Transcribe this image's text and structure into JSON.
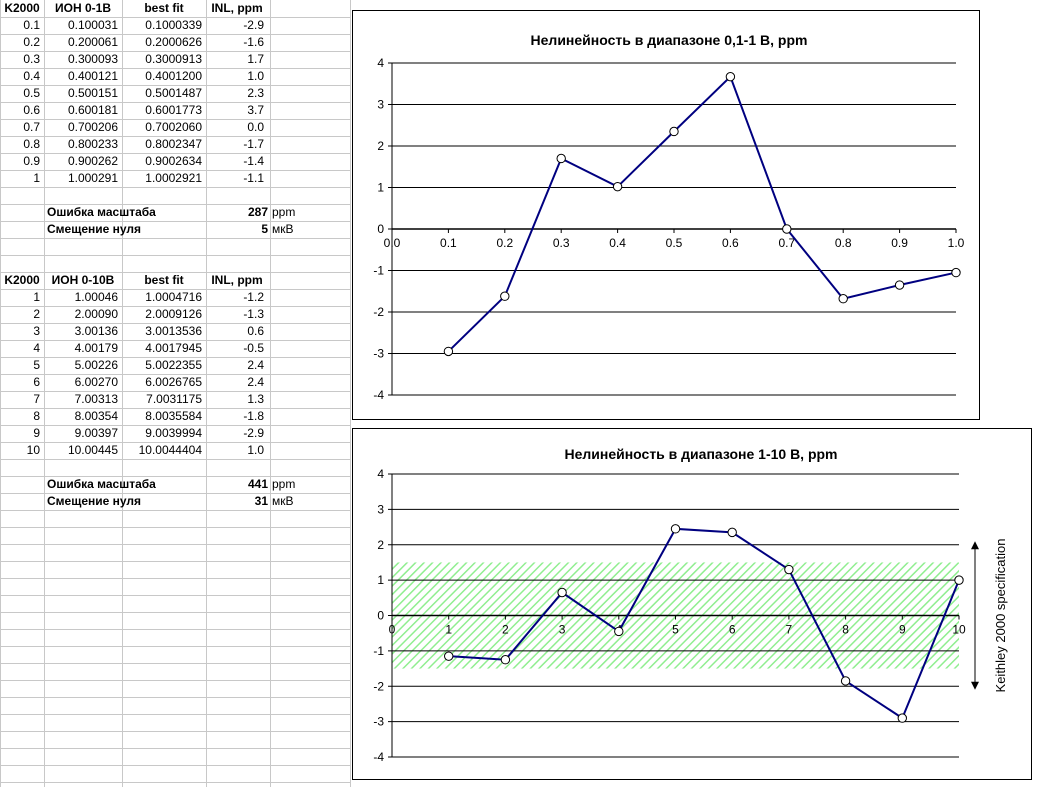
{
  "table1": {
    "headers": [
      "K2000",
      "ИОН 0-1В",
      "best fit",
      "INL, ppm"
    ],
    "rows": [
      [
        "0.1",
        "0.100031",
        "0.1000339",
        "-2.9"
      ],
      [
        "0.2",
        "0.200061",
        "0.2000626",
        "-1.6"
      ],
      [
        "0.3",
        "0.300093",
        "0.3000913",
        "1.7"
      ],
      [
        "0.4",
        "0.400121",
        "0.4001200",
        "1.0"
      ],
      [
        "0.5",
        "0.500151",
        "0.5001487",
        "2.3"
      ],
      [
        "0.6",
        "0.600181",
        "0.6001773",
        "3.7"
      ],
      [
        "0.7",
        "0.700206",
        "0.7002060",
        "0.0"
      ],
      [
        "0.8",
        "0.800233",
        "0.8002347",
        "-1.7"
      ],
      [
        "0.9",
        "0.900262",
        "0.9002634",
        "-1.4"
      ],
      [
        "1",
        "1.000291",
        "1.0002921",
        "-1.1"
      ]
    ],
    "scale_error_label": "Ошибка масштаба",
    "scale_error_value": "287",
    "scale_error_unit": "ppm",
    "zero_offset_label": "Смещение нуля",
    "zero_offset_value": "5",
    "zero_offset_unit": "мкВ"
  },
  "table2": {
    "headers": [
      "K2000",
      "ИОН 0-10В",
      "best fit",
      "INL, ppm"
    ],
    "rows": [
      [
        "1",
        "1.00046",
        "1.0004716",
        "-1.2"
      ],
      [
        "2",
        "2.00090",
        "2.0009126",
        "-1.3"
      ],
      [
        "3",
        "3.00136",
        "3.0013536",
        "0.6"
      ],
      [
        "4",
        "4.00179",
        "4.0017945",
        "-0.5"
      ],
      [
        "5",
        "5.00226",
        "5.0022355",
        "2.4"
      ],
      [
        "6",
        "6.00270",
        "6.0026765",
        "2.4"
      ],
      [
        "7",
        "7.00313",
        "7.0031175",
        "1.3"
      ],
      [
        "8",
        "8.00354",
        "8.0035584",
        "-1.8"
      ],
      [
        "9",
        "9.00397",
        "9.0039994",
        "-2.9"
      ],
      [
        "10",
        "10.00445",
        "10.0044404",
        "1.0"
      ]
    ],
    "scale_error_label": "Ошибка масштаба",
    "scale_error_value": "441",
    "scale_error_unit": "ppm",
    "zero_offset_label": "Смещение нуля",
    "zero_offset_value": "31",
    "zero_offset_unit": "мкВ"
  },
  "chart_data": [
    {
      "type": "line",
      "title": "Нелинейность в диапазоне 0,1-1 В, ppm",
      "x": [
        0.1,
        0.2,
        0.3,
        0.4,
        0.5,
        0.6,
        0.7,
        0.8,
        0.9,
        1.0
      ],
      "y": [
        -2.95,
        -1.62,
        1.7,
        1.02,
        2.35,
        3.67,
        0.0,
        -1.68,
        -1.35,
        -1.05
      ],
      "xlim": [
        0,
        1.0
      ],
      "ylim": [
        -4,
        4
      ],
      "x_ticks": [
        "0.0",
        "0.1",
        "0.2",
        "0.3",
        "0.4",
        "0.5",
        "0.6",
        "0.7",
        "0.8",
        "0.9",
        "1.0"
      ],
      "y_ticks": [
        "4",
        "3",
        "2",
        "1",
        "0",
        "-1",
        "-2",
        "-3",
        "-4"
      ],
      "grid": "horizontal",
      "line_color": "#000080"
    },
    {
      "type": "line",
      "title": "Нелинейность в диапазоне 1-10 В, ppm",
      "x": [
        1,
        2,
        3,
        4,
        5,
        6,
        7,
        8,
        9,
        10
      ],
      "y": [
        -1.15,
        -1.25,
        0.65,
        -0.45,
        2.45,
        2.35,
        1.3,
        -1.85,
        -2.9,
        1.0
      ],
      "xlim": [
        0,
        10
      ],
      "ylim": [
        -4,
        4
      ],
      "x_ticks": [
        "0",
        "1",
        "2",
        "3",
        "4",
        "5",
        "6",
        "7",
        "8",
        "9",
        "10"
      ],
      "y_ticks": [
        "4",
        "3",
        "2",
        "1",
        "0",
        "-1",
        "-2",
        "-3",
        "-4"
      ],
      "grid": "horizontal",
      "line_color": "#000080",
      "spec_band": [
        -1.5,
        1.5
      ],
      "spec_band_color": "#90ee90",
      "spec_label": "Keithley 2000 specification"
    }
  ]
}
